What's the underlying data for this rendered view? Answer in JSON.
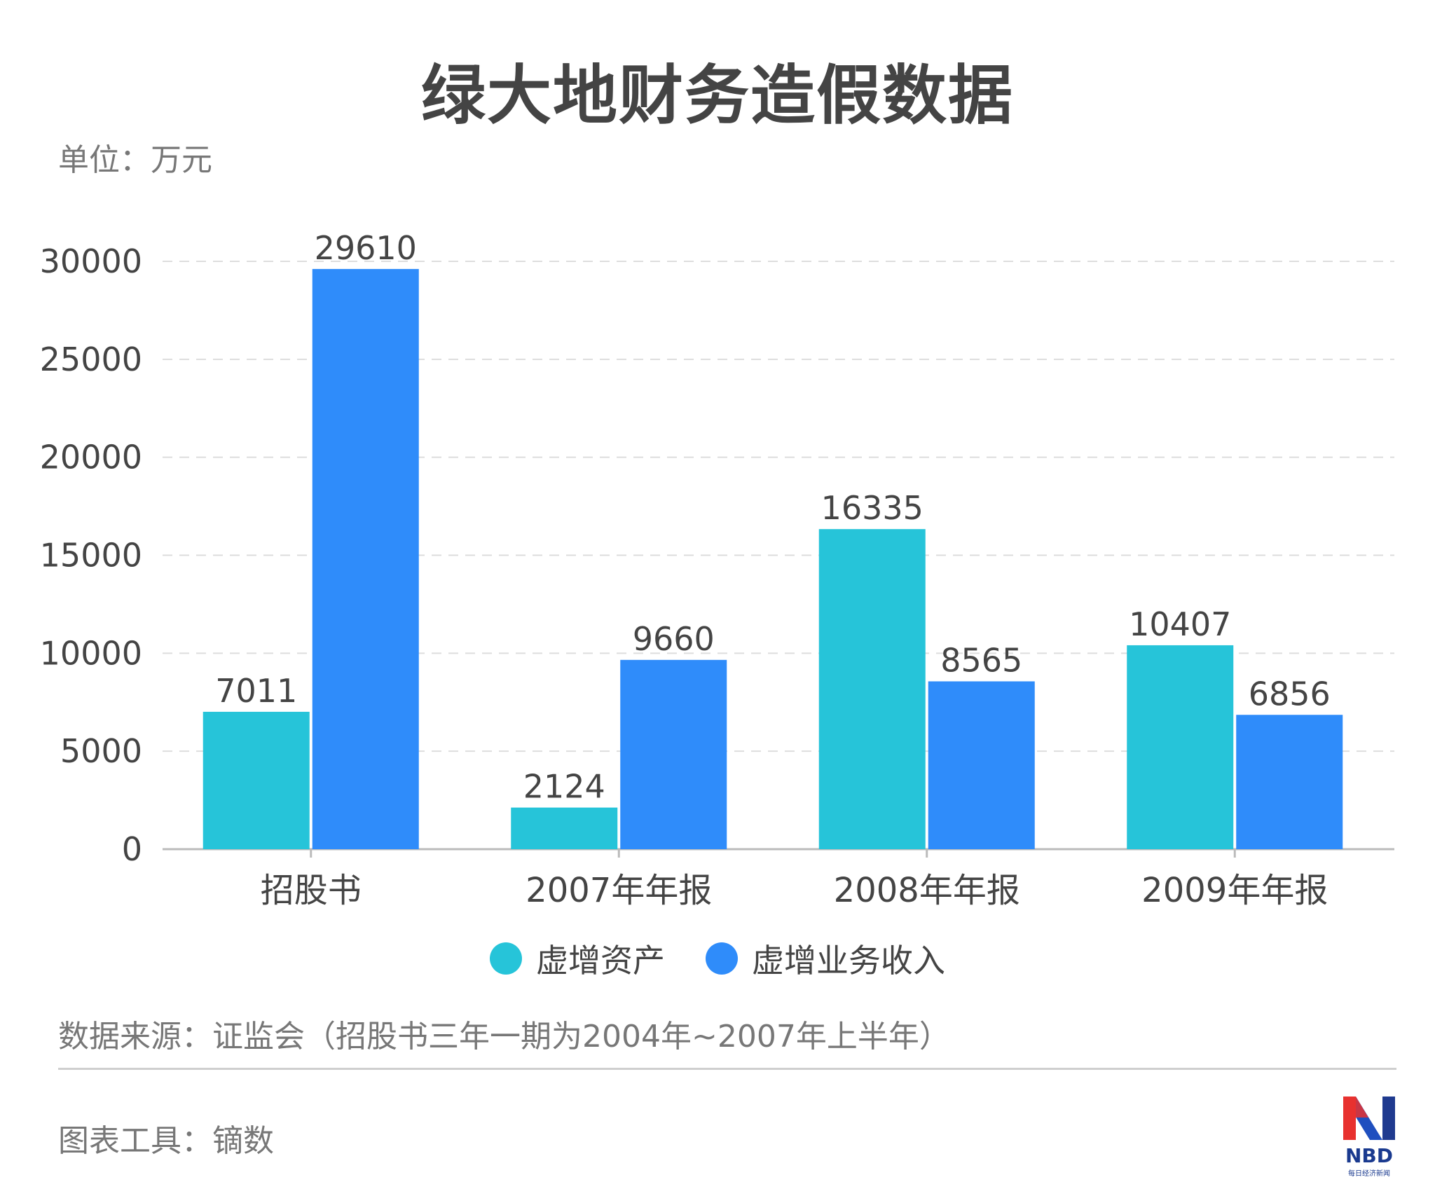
{
  "title": "绿大地财务造假数据",
  "unit_label": "单位：万元",
  "source": "数据来源：证监会（招股书三年一期为2004年~2007年上半年）",
  "tool": "图表工具：镝数",
  "logo": {
    "text": "NBD",
    "subtitle": "每日经济新闻"
  },
  "colors": {
    "series1": "#26C4D9",
    "series2": "#2F8CFA",
    "grid": "#dddddd",
    "axis": "#bbbbbb",
    "text": "#444444"
  },
  "chart_data": {
    "type": "bar",
    "title": "绿大地财务造假数据",
    "ylabel": "单位：万元",
    "xlabel": "",
    "categories": [
      "招股书",
      "2007年年报",
      "2008年年报",
      "2009年年报"
    ],
    "series": [
      {
        "name": "虚增资产",
        "values": [
          7011,
          2124,
          16335,
          10407
        ]
      },
      {
        "name": "虚增业务收入",
        "values": [
          29610,
          9660,
          8565,
          6856
        ]
      }
    ],
    "ylim": [
      0,
      30000
    ],
    "yticks": [
      "0",
      "5000",
      "10000",
      "15000",
      "20000",
      "25000",
      "30000"
    ],
    "grid": true,
    "legend": "bottom-center"
  }
}
